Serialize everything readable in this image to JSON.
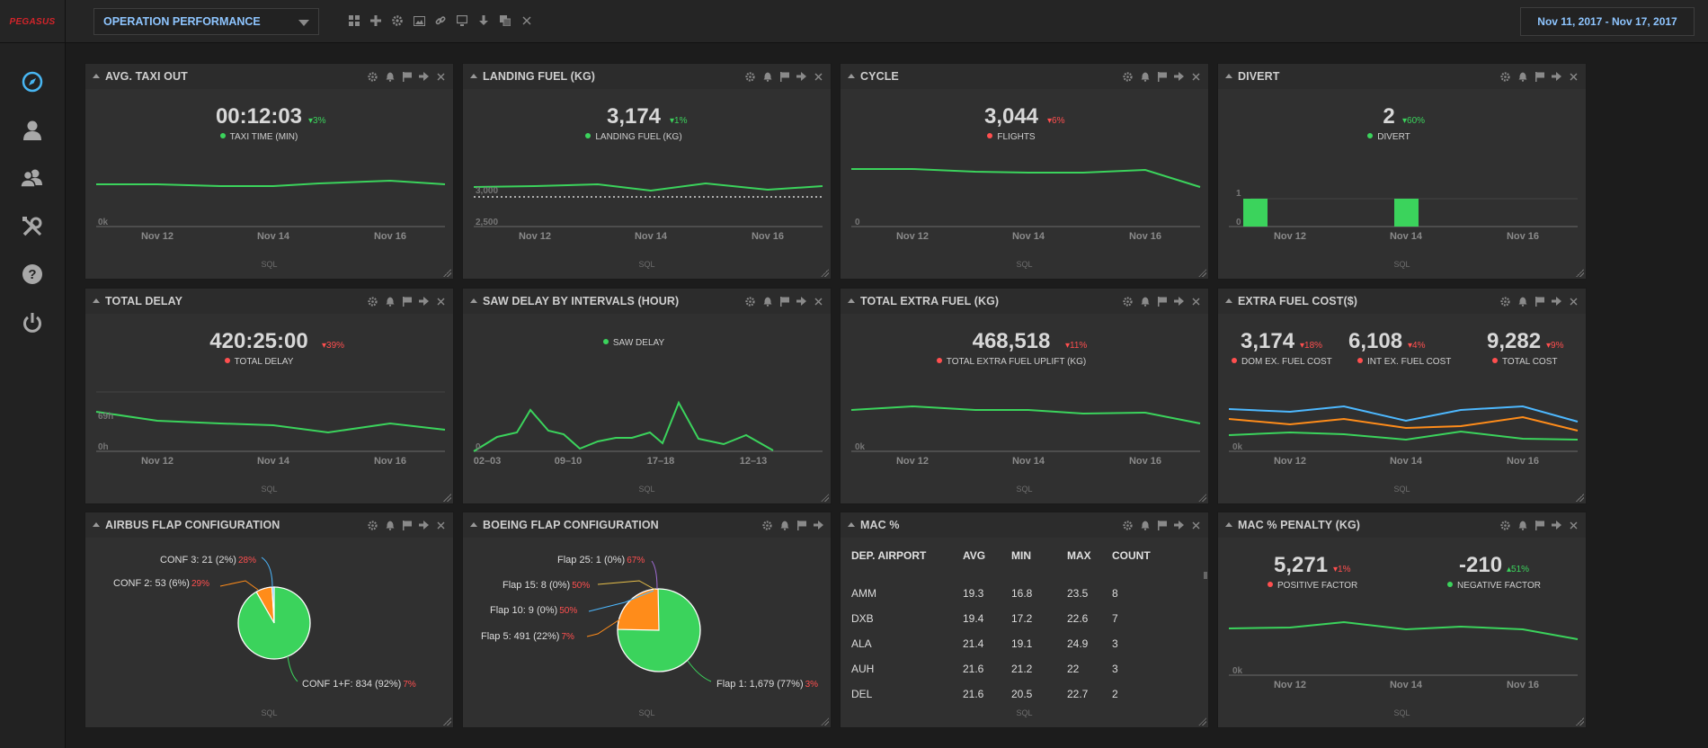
{
  "app": {
    "logo": "PEGASUS"
  },
  "header": {
    "dashboard": "OPERATION PERFORMANCE",
    "date_range": "Nov 11, 2017 - Nov 17, 2017"
  },
  "panels": {
    "taxi": {
      "title": "AVG. TAXI OUT",
      "value": "00:12:03",
      "delta": "▾3%",
      "legend": "TAXI TIME (MIN)",
      "x_ticks": [
        "Nov 12",
        "Nov 14",
        "Nov 16"
      ],
      "y_ticks": [
        "0k"
      ],
      "footer": "SQL"
    },
    "landing": {
      "title": "LANDING FUEL (KG)",
      "value": "3,174",
      "delta": "▾1%",
      "legend": "LANDING FUEL (KG)",
      "x_ticks": [
        "Nov 12",
        "Nov 14",
        "Nov 16"
      ],
      "y_ticks": [
        "3,000",
        "2,500"
      ],
      "footer": "SQL"
    },
    "cycle": {
      "title": "CYCLE",
      "value": "3,044",
      "delta": "▾6%",
      "legend": "FLIGHTS",
      "x_ticks": [
        "Nov 12",
        "Nov 14",
        "Nov 16"
      ],
      "y_ticks": [
        "0"
      ],
      "footer": "SQL"
    },
    "divert": {
      "title": "DIVERT",
      "value": "2",
      "delta": "▾60%",
      "legend": "DIVERT",
      "x_ticks": [
        "Nov 12",
        "Nov 14",
        "Nov 16"
      ],
      "y_ticks": [
        "1",
        "0"
      ],
      "footer": "SQL"
    },
    "delay": {
      "title": "TOTAL DELAY",
      "value": "420:25:00",
      "delta": "▾39%",
      "legend": "TOTAL DELAY",
      "x_ticks": [
        "Nov 12",
        "Nov 14",
        "Nov 16"
      ],
      "y_ticks": [
        "69h",
        "0h"
      ],
      "footer": "SQL"
    },
    "saw": {
      "title": "SAW DELAY BY INTERVALS (HOUR)",
      "legend": "SAW DELAY",
      "x_ticks": [
        "02–03",
        "09–10",
        "17–18",
        "12–13"
      ],
      "y_ticks": [
        "0"
      ],
      "footer": "SQL"
    },
    "extrafuel": {
      "title": "TOTAL EXTRA FUEL (KG)",
      "value": "468,518",
      "delta": "▾11%",
      "legend": "TOTAL EXTRA FUEL UPLIFT (KG)",
      "x_ticks": [
        "Nov 12",
        "Nov 14",
        "Nov 16"
      ],
      "y_ticks": [
        "0k"
      ],
      "footer": "SQL"
    },
    "fuelcost": {
      "title": "EXTRA FUEL COST($)",
      "x_ticks": [
        "Nov 12",
        "Nov 14",
        "Nov 16"
      ],
      "y_ticks": [
        "0k"
      ],
      "footer": "SQL",
      "kpis": [
        {
          "value": "3,174",
          "delta": "▾18%",
          "legend": "DOM EX. FUEL COST"
        },
        {
          "value": "6,108",
          "delta": "▾4%",
          "legend": "INT EX. FUEL COST"
        },
        {
          "value": "9,282",
          "delta": "▾9%",
          "legend": "TOTAL COST"
        }
      ]
    },
    "airbus": {
      "title": "AIRBUS FLAP CONFIGURATION",
      "footer": "SQL",
      "labels": [
        {
          "text": "CONF 3: 21 (2%)",
          "pct": "28%"
        },
        {
          "text": "CONF 2: 53 (6%)",
          "pct": "29%"
        },
        {
          "text": "CONF 1+F: 834 (92%)",
          "pct": "7%"
        }
      ]
    },
    "boeing": {
      "title": "BOEING FLAP CONFIGURATION",
      "footer": "SQL",
      "labels": [
        {
          "text": "Flap 25: 1 (0%)",
          "pct": "67%"
        },
        {
          "text": "Flap 15: 8 (0%)",
          "pct": "50%"
        },
        {
          "text": "Flap 10: 9 (0%)",
          "pct": "50%"
        },
        {
          "text": "Flap 5: 491 (22%)",
          "pct": "7%"
        },
        {
          "text": "Flap 1: 1,679 (77%)",
          "pct": "3%"
        }
      ]
    },
    "mac": {
      "title": "MAC %",
      "footer": "SQL",
      "columns": [
        "DEP. AIRPORT",
        "AVG",
        "MIN",
        "MAX",
        "COUNT"
      ],
      "rows": [
        [
          "AMM",
          "19.3",
          "16.8",
          "23.5",
          "8"
        ],
        [
          "DXB",
          "19.4",
          "17.2",
          "22.6",
          "7"
        ],
        [
          "ALA",
          "21.4",
          "19.1",
          "24.9",
          "3"
        ],
        [
          "AUH",
          "21.6",
          "21.2",
          "22",
          "3"
        ],
        [
          "DEL",
          "21.6",
          "20.5",
          "22.7",
          "2"
        ]
      ]
    },
    "penalty": {
      "title": "MAC % PENALTY (KG)",
      "x_ticks": [
        "Nov 12",
        "Nov 14",
        "Nov 16"
      ],
      "y_ticks": [
        "0k"
      ],
      "footer": "SQL",
      "kpis": [
        {
          "value": "5,271",
          "delta": "▾1%",
          "legend": "POSITIVE FACTOR"
        },
        {
          "value": "-210",
          "delta": "▴51%",
          "legend": "NEGATIVE FACTOR"
        }
      ]
    }
  },
  "colors": {
    "green": "#3bd35c",
    "orange": "#ff8c1a",
    "blue": "#4db8ff",
    "red": "#ff4f4f",
    "accent": "#8ec5ff"
  }
}
